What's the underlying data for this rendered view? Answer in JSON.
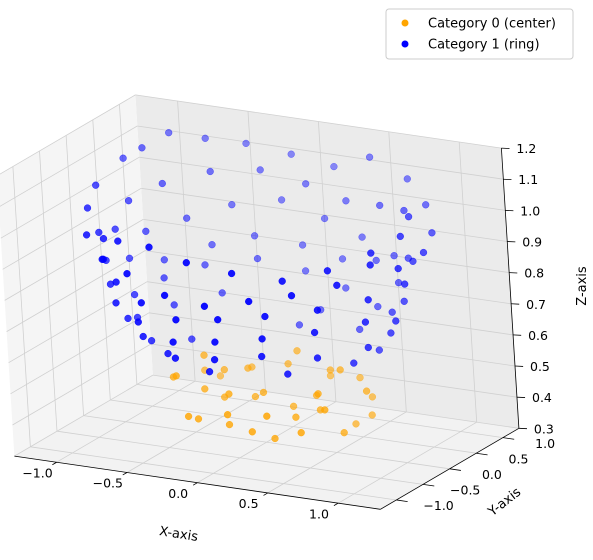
{
  "chart_data": {
    "type": "scatter",
    "projection": "3d",
    "xlabel": "X-axis",
    "ylabel": "Y-axis",
    "zlabel": "Z-axis",
    "xlim": [
      -1.3,
      1.3
    ],
    "ylim": [
      -1.3,
      1.3
    ],
    "zlim": [
      0.3,
      1.2
    ],
    "xticks": [
      -1.0,
      -0.5,
      0.0,
      0.5,
      1.0
    ],
    "yticks": [
      -1.0,
      -0.5,
      0.0,
      0.5,
      1.0
    ],
    "zticks": [
      0.3,
      0.4,
      0.5,
      0.6,
      0.7,
      0.8,
      0.9,
      1.0,
      1.1,
      1.2
    ],
    "xtick_labels": [
      "−1.0",
      "−0.5",
      "0.0",
      "0.5",
      "1.0"
    ],
    "ytick_labels": [
      "−1.0",
      "−0.5",
      "0.0",
      "0.5",
      "1.0"
    ],
    "ztick_labels": [
      "0.3",
      "0.4",
      "0.5",
      "0.6",
      "0.7",
      "0.8",
      "0.9",
      "1.0",
      "1.1",
      "1.2"
    ],
    "grid": true,
    "legend_position": "top-right",
    "series": [
      {
        "name": "Category 0 (center)",
        "color": "#ffa500",
        "points": [
          [
            0.05,
            0.35,
            0.52
          ],
          [
            -0.35,
            0.2,
            0.49
          ],
          [
            0.25,
            0.6,
            0.47
          ],
          [
            0.5,
            0.15,
            0.55
          ],
          [
            0.6,
            0.45,
            0.44
          ],
          [
            -0.1,
            0.1,
            0.43
          ],
          [
            -0.4,
            -0.05,
            0.45
          ],
          [
            0.3,
            -0.2,
            0.42
          ],
          [
            0.55,
            -0.3,
            0.47
          ],
          [
            -0.5,
            -0.3,
            0.51
          ],
          [
            -0.3,
            -0.45,
            0.4
          ],
          [
            0.1,
            -0.5,
            0.39
          ],
          [
            0.45,
            -0.5,
            0.41
          ],
          [
            -0.55,
            0.35,
            0.46
          ],
          [
            0.7,
            0.1,
            0.5
          ],
          [
            0.15,
            0.15,
            0.41
          ],
          [
            -0.15,
            -0.25,
            0.47
          ],
          [
            0.35,
            0.35,
            0.52
          ],
          [
            -0.25,
            0.45,
            0.48
          ],
          [
            0.6,
            -0.1,
            0.38
          ],
          [
            -0.45,
            0.1,
            0.54
          ],
          [
            0.2,
            -0.35,
            0.36
          ],
          [
            -0.05,
            -0.55,
            0.44
          ],
          [
            0.5,
            0.5,
            0.49
          ],
          [
            -0.6,
            -0.1,
            0.48
          ],
          [
            0.0,
            0.0,
            0.46
          ],
          [
            0.4,
            0.0,
            0.43
          ],
          [
            -0.2,
            0.25,
            0.5
          ],
          [
            0.25,
            -0.6,
            0.46
          ],
          [
            -0.35,
            -0.5,
            0.41
          ],
          [
            0.65,
            0.3,
            0.4
          ],
          [
            -0.5,
            0.5,
            0.43
          ],
          [
            0.1,
            0.4,
            0.56
          ],
          [
            0.45,
            -0.15,
            0.5
          ],
          [
            -0.1,
            -0.4,
            0.39
          ],
          [
            0.55,
            0.25,
            0.37
          ],
          [
            -0.3,
            0.05,
            0.42
          ],
          [
            0.3,
            0.2,
            0.45
          ]
        ]
      },
      {
        "name": "Category 1 (ring)",
        "color": "#0000ff",
        "points": [
          [
            -1.1,
            0.5,
            1.09
          ],
          [
            -1.0,
            0.6,
            1.12
          ],
          [
            -0.9,
            0.85,
            1.15
          ],
          [
            -0.7,
            1.0,
            1.13
          ],
          [
            -0.45,
            1.1,
            1.12
          ],
          [
            -0.15,
            1.15,
            1.1
          ],
          [
            0.15,
            1.15,
            1.08
          ],
          [
            0.45,
            1.05,
            1.14
          ],
          [
            0.75,
            0.95,
            1.1
          ],
          [
            0.95,
            0.75,
            1.05
          ],
          [
            1.1,
            0.45,
            1.0
          ],
          [
            1.15,
            0.15,
            0.97
          ],
          [
            1.1,
            -0.2,
            0.95
          ],
          [
            1.0,
            -0.45,
            0.98
          ],
          [
            0.85,
            -0.7,
            0.93
          ],
          [
            0.6,
            -0.9,
            0.9
          ],
          [
            0.35,
            -1.05,
            0.88
          ],
          [
            0.05,
            -1.1,
            0.85
          ],
          [
            -0.25,
            -1.05,
            0.86
          ],
          [
            -0.55,
            -0.95,
            0.9
          ],
          [
            -0.8,
            -0.75,
            0.91
          ],
          [
            -1.0,
            -0.5,
            0.95
          ],
          [
            -1.1,
            -0.2,
            1.0
          ],
          [
            -1.15,
            0.1,
            1.04
          ],
          [
            -1.0,
            0.3,
            0.98
          ],
          [
            -0.85,
            0.55,
            1.02
          ],
          [
            -0.6,
            0.8,
            1.05
          ],
          [
            -0.3,
            0.95,
            1.06
          ],
          [
            0.0,
            1.0,
            1.03
          ],
          [
            0.3,
            0.95,
            1.0
          ],
          [
            0.6,
            0.8,
            1.02
          ],
          [
            0.85,
            0.6,
            1.04
          ],
          [
            1.0,
            0.3,
            1.06
          ],
          [
            1.05,
            0.0,
            1.03
          ],
          [
            0.95,
            -0.3,
            1.0
          ],
          [
            0.75,
            -0.6,
            0.96
          ],
          [
            0.5,
            -0.8,
            0.93
          ],
          [
            0.2,
            -0.95,
            0.95
          ],
          [
            -0.1,
            -1.0,
            0.97
          ],
          [
            -0.4,
            -0.9,
            0.99
          ],
          [
            -0.7,
            -0.7,
            0.97
          ],
          [
            -0.9,
            -0.45,
            0.94
          ],
          [
            -1.05,
            -0.15,
            0.92
          ],
          [
            -1.05,
            0.15,
            0.9
          ],
          [
            -0.95,
            0.45,
            0.87
          ],
          [
            -0.75,
            0.7,
            0.9
          ],
          [
            -0.5,
            0.9,
            0.94
          ],
          [
            -0.2,
            1.05,
            0.96
          ],
          [
            0.1,
            1.05,
            0.92
          ],
          [
            0.4,
            0.95,
            0.89
          ],
          [
            0.7,
            0.75,
            0.87
          ],
          [
            0.9,
            0.5,
            0.9
          ],
          [
            1.05,
            0.2,
            0.93
          ],
          [
            1.1,
            -0.1,
            0.89
          ],
          [
            0.95,
            -0.4,
            0.86
          ],
          [
            0.7,
            -0.7,
            0.84
          ],
          [
            0.4,
            -0.9,
            0.82
          ],
          [
            0.1,
            -1.0,
            0.8
          ],
          [
            -0.2,
            -1.0,
            0.78
          ],
          [
            -0.5,
            -0.85,
            0.8
          ],
          [
            -0.75,
            -0.65,
            0.83
          ],
          [
            -0.95,
            -0.35,
            0.86
          ],
          [
            -1.05,
            -0.05,
            0.82
          ],
          [
            -1.0,
            0.25,
            0.8
          ],
          [
            -0.85,
            0.5,
            0.78
          ],
          [
            -0.6,
            0.75,
            0.82
          ],
          [
            -0.35,
            0.9,
            0.85
          ],
          [
            -0.05,
            1.0,
            0.83
          ],
          [
            0.25,
            0.95,
            0.81
          ],
          [
            0.55,
            0.8,
            0.84
          ],
          [
            0.8,
            0.55,
            0.81
          ],
          [
            0.95,
            0.25,
            0.79
          ],
          [
            1.0,
            -0.05,
            0.76
          ],
          [
            0.9,
            -0.35,
            0.78
          ],
          [
            0.65,
            -0.65,
            0.76
          ],
          [
            0.35,
            -0.85,
            0.74
          ],
          [
            0.05,
            -0.95,
            0.72
          ],
          [
            -0.25,
            -0.95,
            0.7
          ],
          [
            -0.55,
            -0.8,
            0.73
          ],
          [
            -0.8,
            -0.55,
            0.75
          ],
          [
            -0.95,
            -0.25,
            0.77
          ],
          [
            -0.9,
            0.05,
            0.71
          ],
          [
            -0.8,
            0.35,
            0.74
          ],
          [
            -0.6,
            0.6,
            0.77
          ],
          [
            -0.3,
            0.8,
            0.79
          ],
          [
            0.0,
            0.9,
            0.76
          ],
          [
            0.3,
            0.85,
            0.73
          ],
          [
            0.6,
            0.65,
            0.71
          ],
          [
            0.8,
            0.4,
            0.73
          ],
          [
            0.9,
            0.1,
            0.7
          ],
          [
            0.85,
            -0.2,
            0.68
          ],
          [
            0.6,
            -0.5,
            0.66
          ],
          [
            0.3,
            -0.75,
            0.67
          ],
          [
            0.0,
            -0.85,
            0.65
          ],
          [
            -0.3,
            -0.8,
            0.63
          ],
          [
            -0.6,
            -0.6,
            0.66
          ],
          [
            -0.8,
            -0.35,
            0.68
          ],
          [
            -0.85,
            -0.05,
            0.65
          ],
          [
            -0.7,
            0.25,
            0.67
          ],
          [
            -0.45,
            0.5,
            0.7
          ],
          [
            0.15,
            0.75,
            0.66
          ],
          [
            0.5,
            0.55,
            0.64
          ],
          [
            0.75,
            0.25,
            0.62
          ],
          [
            0.7,
            -0.1,
            0.61
          ],
          [
            0.4,
            -0.55,
            0.6
          ],
          [
            -0.1,
            -0.7,
            0.59
          ],
          [
            -0.45,
            -0.55,
            0.61
          ],
          [
            -0.7,
            -0.2,
            0.6
          ],
          [
            -0.55,
            0.15,
            0.58
          ],
          [
            0.05,
            0.6,
            0.62
          ]
        ]
      }
    ]
  }
}
